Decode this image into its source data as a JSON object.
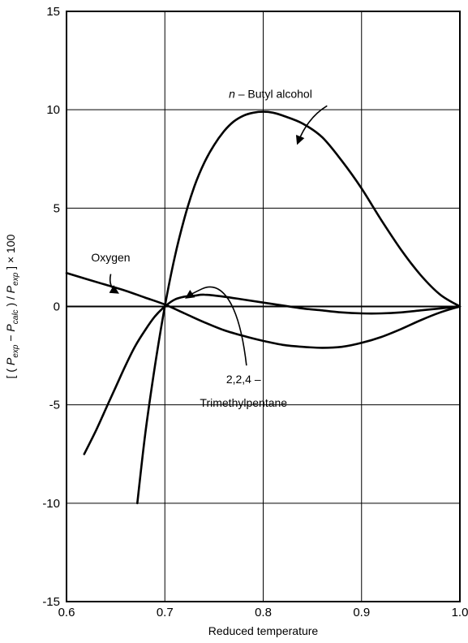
{
  "chart_data": {
    "type": "line",
    "xlabel": "Reduced temperature",
    "ylabel": "[(P_exp − P_calc) / P_exp] × 100",
    "xlim": [
      0.6,
      1.0
    ],
    "ylim": [
      -15,
      15
    ],
    "x_ticks": [
      0.6,
      0.7,
      0.8,
      0.9,
      1.0
    ],
    "y_ticks": [
      -15,
      -10,
      -5,
      0,
      5,
      10,
      15
    ],
    "x_tick_labels": [
      "0.6",
      "0.7",
      "0.8",
      "0.9",
      "1.0"
    ],
    "y_tick_labels": [
      "-15",
      "-10",
      "-5",
      "0",
      "5",
      "10",
      "15"
    ],
    "grid": true,
    "legend": "none (series labeled by annotations with arrows)",
    "series": [
      {
        "name": "n-Butyl alcohol",
        "x": [
          0.672,
          0.68,
          0.69,
          0.7,
          0.71,
          0.72,
          0.73,
          0.74,
          0.75,
          0.76,
          0.77,
          0.78,
          0.79,
          0.8,
          0.81,
          0.82,
          0.84,
          0.86,
          0.88,
          0.9,
          0.92,
          0.94,
          0.96,
          0.98,
          1.0
        ],
        "y": [
          -10.0,
          -6.5,
          -3.0,
          0.0,
          2.5,
          4.5,
          6.1,
          7.3,
          8.2,
          8.9,
          9.4,
          9.7,
          9.85,
          9.9,
          9.85,
          9.7,
          9.3,
          8.6,
          7.4,
          6.0,
          4.4,
          2.9,
          1.6,
          0.6,
          0.0
        ],
        "label": {
          "pre": "n",
          "post": " – Butyl alcohol"
        }
      },
      {
        "name": "Oxygen",
        "x": [
          0.6,
          0.62,
          0.64,
          0.66,
          0.68,
          0.7,
          0.72,
          0.74,
          0.76,
          0.78,
          0.8,
          0.82,
          0.84,
          0.86,
          0.88,
          0.9,
          0.92,
          0.94,
          0.96,
          0.98,
          1.0
        ],
        "y": [
          1.7,
          1.4,
          1.1,
          0.8,
          0.45,
          0.1,
          -0.35,
          -0.8,
          -1.2,
          -1.5,
          -1.75,
          -1.95,
          -2.05,
          -2.1,
          -2.05,
          -1.85,
          -1.55,
          -1.15,
          -0.7,
          -0.3,
          0.0
        ],
        "label": "Oxygen"
      },
      {
        "name": "2,2,4-Trimethylpentane",
        "x": [
          0.618,
          0.63,
          0.64,
          0.65,
          0.66,
          0.67,
          0.68,
          0.69,
          0.7,
          0.71,
          0.72,
          0.73,
          0.74,
          0.76,
          0.78,
          0.8,
          0.82,
          0.84,
          0.86,
          0.88,
          0.9,
          0.92,
          0.94,
          0.96,
          0.98,
          1.0
        ],
        "y": [
          -7.5,
          -6.3,
          -5.2,
          -4.1,
          -3.0,
          -2.0,
          -1.2,
          -0.5,
          0.0,
          0.35,
          0.5,
          0.55,
          0.6,
          0.5,
          0.35,
          0.2,
          0.05,
          -0.1,
          -0.2,
          -0.3,
          -0.35,
          -0.35,
          -0.3,
          -0.2,
          -0.1,
          0.0
        ],
        "label": [
          "2,2,4 –",
          "Trimethylpentane"
        ]
      }
    ],
    "annotations": [
      {
        "series": "n-Butyl alcohol",
        "arrow_from": [
          0.86,
          10.1
        ],
        "arrow_to": [
          0.835,
          8.3
        ]
      },
      {
        "series": "Oxygen",
        "arrow_from": [
          0.64,
          1.5
        ],
        "arrow_to": [
          0.65,
          0.55
        ]
      },
      {
        "series": "2,2,4-Trimethylpentane",
        "arrow_from": [
          0.775,
          -3.0
        ],
        "arrow_to": [
          0.722,
          0.35
        ]
      }
    ]
  }
}
